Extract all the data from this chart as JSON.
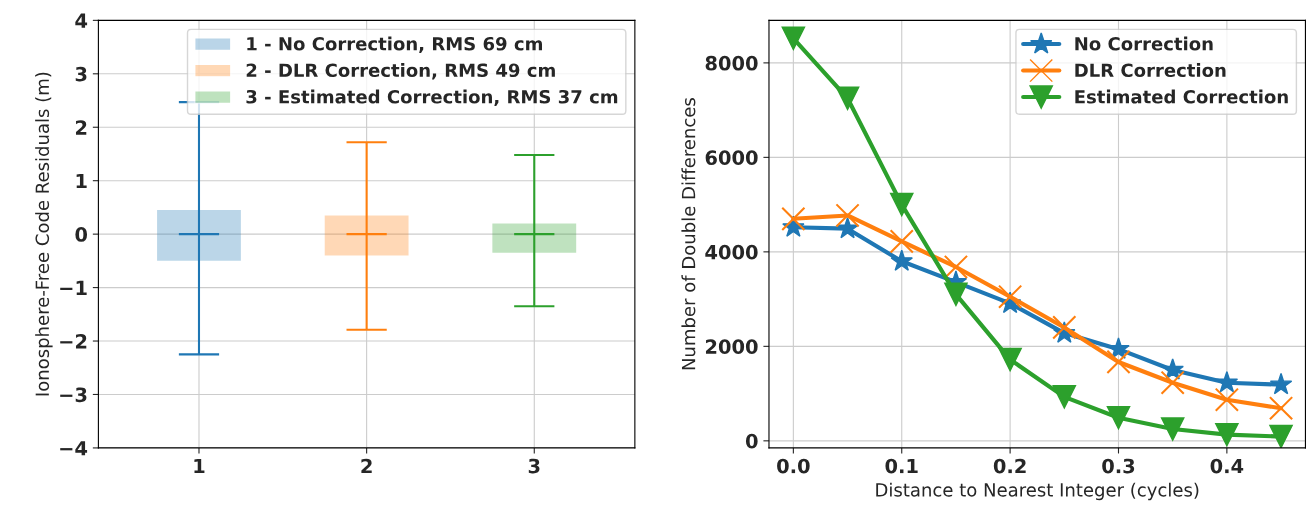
{
  "chart_data": [
    {
      "type": "box",
      "ylabel": "Ionosphere-Free Code Residuals (m)",
      "categories": [
        "1",
        "2",
        "3"
      ],
      "ylim": [
        -4,
        4
      ],
      "yticks": [
        {
          "value": -4,
          "label": "−4"
        },
        {
          "value": -3,
          "label": "−3"
        },
        {
          "value": -2,
          "label": "−2"
        },
        {
          "value": -1,
          "label": "−1"
        },
        0,
        1,
        2,
        3,
        4
      ],
      "grid": true,
      "legend": "top right",
      "series": [
        {
          "name": "1 - No Correction, RMS 69 cm",
          "color": "#1f77b4",
          "boxes": [
            {
              "low": -2.25,
              "q1": -0.5,
              "median": 0.0,
              "q3": 0.45,
              "high": 2.47
            },
            null,
            null
          ]
        },
        {
          "name": "2 - DLR Correction, RMS 49 cm",
          "color": "#ff7f0e",
          "boxes": [
            null,
            {
              "low": -1.79,
              "q1": -0.4,
              "median": 0.0,
              "q3": 0.35,
              "high": 1.72
            },
            null
          ]
        },
        {
          "name": "3 - Estimated Correction, RMS 37 cm",
          "color": "#2ca02c",
          "boxes": [
            null,
            null,
            {
              "low": -1.35,
              "q1": -0.35,
              "median": 0.0,
              "q3": 0.2,
              "high": 1.48
            }
          ]
        }
      ]
    },
    {
      "type": "line",
      "xlabel": "Distance to Nearest Integer (cycles)",
      "ylabel": "Number of Double Differences",
      "x": [
        0.0,
        0.05,
        0.1,
        0.15,
        0.2,
        0.25,
        0.3,
        0.35,
        0.4,
        0.45
      ],
      "xlim": [
        -0.0225,
        0.4725
      ],
      "xticks": [
        {
          "value": 0,
          "label": "0.0"
        },
        0.1,
        0.2,
        0.3,
        0.4
      ],
      "ylim": [
        -150,
        8900
      ],
      "yticks": [
        0,
        2000,
        4000,
        6000,
        8000
      ],
      "grid": true,
      "legend": "top right",
      "series": [
        {
          "name": "No Correction",
          "color": "#1f77b4",
          "marker": "star",
          "values": [
            4520,
            4490,
            3800,
            3360,
            2910,
            2280,
            1940,
            1500,
            1230,
            1190
          ]
        },
        {
          "name": "DLR Correction",
          "color": "#ff7f0e",
          "marker": "cross",
          "values": [
            4700,
            4770,
            4220,
            3680,
            3050,
            2400,
            1670,
            1230,
            870,
            690
          ]
        },
        {
          "name": "Estimated Correction",
          "color": "#2ca02c",
          "marker": "triangle",
          "values": [
            8520,
            7250,
            5000,
            3100,
            1720,
            930,
            490,
            250,
            130,
            90
          ]
        }
      ]
    }
  ]
}
